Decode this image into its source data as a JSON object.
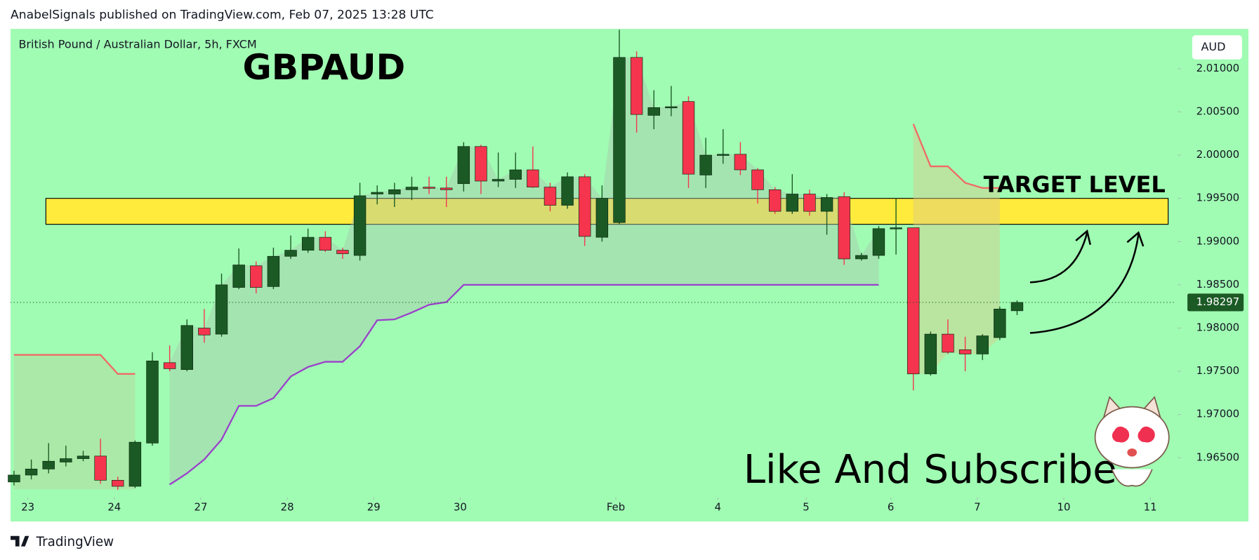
{
  "header": "AnabelSignals published on TradingView.com, Feb 07, 2025 13:28 UTC",
  "footer": "TradingView",
  "chart_data": {
    "type": "candlestick",
    "title": "GBPAUD",
    "subtitle": "British Pound / Australian Dollar, 5h, FXCM",
    "currency": "AUD",
    "open": [
      1.9622,
      1.963,
      1.9637,
      1.9645,
      1.9649,
      1.9652,
      1.9624,
      1.9617,
      1.9667,
      1.976,
      1.9752,
      1.98,
      1.9793,
      1.9847,
      1.9872,
      1.9848,
      1.9883,
      1.989,
      1.9905,
      1.989,
      1.9884,
      1.9955,
      1.9955,
      1.996,
      1.9963,
      1.9962,
      1.9967,
      2.001,
      1.997,
      1.9972,
      1.9983,
      1.9963,
      1.9942,
      1.9975,
      1.9905,
      1.9922,
      2.0113,
      2.0046,
      2.0055,
      2.0062,
      1.9977,
      2.0,
      2.0001,
      1.9983,
      1.996,
      1.9935,
      1.9955,
      1.9935,
      1.9952,
      1.988,
      1.9884,
      1.9915,
      1.9916,
      1.9747,
      1.9793,
      1.9775,
      1.977,
      1.9789,
      1.982
    ],
    "high": [
      1.9635,
      1.9648,
      1.9667,
      1.9664,
      1.9658,
      1.9672,
      1.9628,
      1.967,
      1.9772,
      1.978,
      1.981,
      1.9822,
      1.9863,
      1.9892,
      1.9877,
      1.9893,
      1.9907,
      1.9915,
      1.9912,
      1.9893,
      1.9968,
      1.9965,
      1.9968,
      1.9975,
      1.9975,
      1.9975,
      2.0015,
      2.0012,
      2.0003,
      2.0003,
      2.001,
      1.9968,
      1.998,
      1.9978,
      1.9965,
      2.0145,
      2.012,
      2.0075,
      2.008,
      2.0068,
      2.002,
      2.003,
      2.0015,
      1.9985,
      1.9963,
      1.9978,
      1.996,
      1.9955,
      1.9957,
      1.9887,
      1.9918,
      1.995,
      1.9916,
      1.9796,
      1.981,
      1.979,
      1.9793,
      1.9825,
      1.9832
    ],
    "low": [
      1.9618,
      1.9625,
      1.9632,
      1.964,
      1.9646,
      1.962,
      1.9613,
      1.9615,
      1.9664,
      1.975,
      1.975,
      1.9783,
      1.979,
      1.9845,
      1.984,
      1.9845,
      1.988,
      1.9887,
      1.9888,
      1.988,
      1.9878,
      1.9943,
      1.994,
      1.9948,
      1.9955,
      1.994,
      1.9958,
      1.9955,
      1.9963,
      1.9962,
      1.9962,
      1.9935,
      1.9938,
      1.9895,
      1.99,
      1.992,
      2.0026,
      2.003,
      2.0045,
      1.9962,
      1.9962,
      1.999,
      1.9977,
      1.9944,
      1.9932,
      1.9932,
      1.993,
      1.9908,
      1.9873,
      1.9878,
      1.988,
      1.9885,
      1.9728,
      1.9745,
      1.977,
      1.975,
      1.9763,
      1.9786,
      1.9815
    ],
    "close": [
      1.963,
      1.9637,
      1.9646,
      1.9649,
      1.9652,
      1.9624,
      1.9617,
      1.9668,
      1.9762,
      1.9753,
      1.9803,
      1.9792,
      1.985,
      1.9873,
      1.9847,
      1.9883,
      1.989,
      1.9905,
      1.989,
      1.9886,
      1.9953,
      1.9957,
      1.996,
      1.9963,
      1.9962,
      1.996,
      2.001,
      1.997,
      1.9972,
      1.9983,
      1.9963,
      1.9942,
      1.9975,
      1.9906,
      1.995,
      2.0113,
      2.0047,
      2.0055,
      2.0056,
      1.9978,
      2.0,
      2.0001,
      1.9983,
      1.996,
      1.9935,
      1.9955,
      1.9935,
      1.9951,
      1.988,
      1.9884,
      1.9915,
      1.9916,
      1.9747,
      1.9793,
      1.9772,
      1.977,
      1.9791,
      1.9822,
      1.98297
    ],
    "up_color": "#1c5a25",
    "down_color": "#f5354e",
    "lines": [
      {
        "color": "#9b3fcb",
        "values": [
          null,
          null,
          null,
          null,
          null,
          null,
          null,
          null,
          null,
          1.9619,
          1.9632,
          1.9648,
          1.9671,
          1.971,
          1.971,
          1.9719,
          1.9744,
          1.9755,
          1.9761,
          1.9761,
          1.9779,
          1.9809,
          1.981,
          1.9818,
          1.9827,
          1.983,
          1.985,
          1.985,
          1.985,
          1.985,
          1.985,
          1.985,
          1.985,
          1.985,
          1.985,
          1.985,
          1.985,
          1.985,
          1.985,
          1.985,
          1.985,
          1.985,
          1.985,
          1.985,
          1.985,
          1.985,
          1.985,
          1.985,
          1.985,
          1.985,
          1.985,
          null,
          null,
          null,
          null,
          null,
          null,
          null,
          null
        ]
      },
      {
        "color": "#f06a66",
        "values": [
          1.9769,
          1.9769,
          1.9769,
          1.9769,
          1.9769,
          1.9769,
          1.9747,
          1.9747,
          null,
          null,
          null,
          null,
          null,
          null,
          null,
          null,
          null,
          null,
          null,
          null,
          null,
          null,
          null,
          null,
          null,
          null,
          null,
          null,
          null,
          null,
          null,
          null,
          null,
          null,
          null,
          null,
          null,
          null,
          null,
          null,
          null,
          null,
          null,
          null,
          null,
          null,
          null,
          null,
          null,
          null,
          null,
          null,
          2.0036,
          1.9987,
          1.9987,
          1.9968,
          1.9962,
          1.9962,
          null
        ]
      }
    ],
    "xlim": [
      -0.2,
      67.2
    ],
    "xticks": [
      {
        "value": 0.8,
        "label": "23"
      },
      {
        "value": 5.8,
        "label": "24"
      },
      {
        "value": 10.8,
        "label": "27"
      },
      {
        "value": 15.8,
        "label": "28"
      },
      {
        "value": 20.8,
        "label": "29"
      },
      {
        "value": 25.8,
        "label": "30"
      },
      {
        "value": 34.8,
        "label": "Feb"
      },
      {
        "value": 40.7,
        "label": "4"
      },
      {
        "value": 45.8,
        "label": "5"
      },
      {
        "value": 50.7,
        "label": "6"
      },
      {
        "value": 55.7,
        "label": "7"
      },
      {
        "value": 60.7,
        "label": "10"
      },
      {
        "value": 65.7,
        "label": "11"
      }
    ],
    "ylim": [
      1.9606,
      2.0146
    ],
    "yticks": [
      {
        "value": 1.965,
        "label": "1.96500"
      },
      {
        "value": 1.97,
        "label": "1.97000"
      },
      {
        "value": 1.975,
        "label": "1.97500"
      },
      {
        "value": 1.98,
        "label": "1.98000"
      },
      {
        "value": 1.985,
        "label": "1.98500"
      },
      {
        "value": 1.99,
        "label": "1.99000"
      },
      {
        "value": 1.995,
        "label": "1.99500"
      },
      {
        "value": 2.0,
        "label": "2.00000"
      },
      {
        "value": 2.005,
        "label": "2.00500"
      },
      {
        "value": 2.01,
        "label": "2.01000"
      }
    ],
    "zone": {
      "top": 1.995,
      "bottom": 1.992,
      "color": "#ffeb3b"
    },
    "last_price": {
      "value": 1.98297,
      "label": "1.98297"
    },
    "annotations": [
      "TARGET LEVEL",
      "Like And Subscribe"
    ]
  }
}
